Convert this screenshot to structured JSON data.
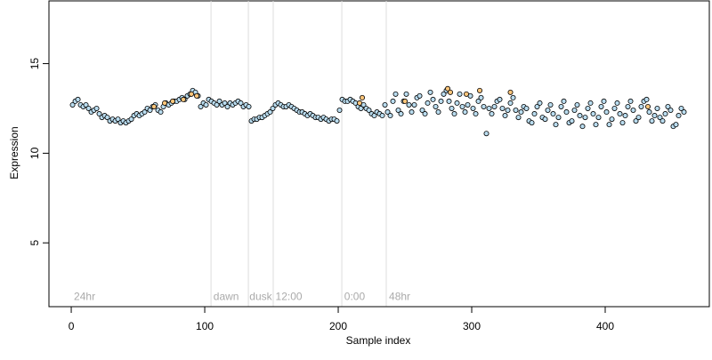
{
  "chart_data": {
    "type": "scatter",
    "xlabel": "Sample index",
    "ylabel": "Expression",
    "xlim": [
      -16.7,
      478
    ],
    "ylim": [
      1.44,
      18.5
    ],
    "xticks": [
      0,
      100,
      200,
      300,
      400
    ],
    "yticks": [
      5,
      10,
      15
    ],
    "vlines": [
      104.7,
      132.7,
      151.3,
      202.7,
      236
    ],
    "annotations": [
      {
        "label": "24hr",
        "x": 2,
        "y": 2.0
      },
      {
        "label": "dawn",
        "x": 106.5,
        "y": 2.0
      },
      {
        "label": "dusk",
        "x": 133.5,
        "y": 2.0
      },
      {
        "label": "12:00",
        "x": 153,
        "y": 2.0
      },
      {
        "label": "0:00",
        "x": 204.5,
        "y": 2.0
      },
      {
        "label": "48hr",
        "x": 238,
        "y": 2.0
      }
    ],
    "series": [
      {
        "color": "#b9dcef",
        "x": [
          1,
          3,
          5,
          7,
          9,
          11,
          13,
          15,
          17,
          19,
          21,
          23,
          25,
          27,
          29,
          31,
          33,
          35,
          37,
          39,
          41,
          43,
          45,
          47,
          49,
          51,
          53,
          55,
          57,
          59,
          61,
          63,
          65,
          67,
          69,
          71,
          73,
          75,
          77,
          79,
          81,
          83,
          85,
          87,
          89,
          91,
          93,
          95,
          97,
          99,
          101,
          103,
          105,
          107,
          109,
          111,
          113,
          115,
          117,
          119,
          121,
          123,
          125,
          127,
          129,
          131,
          133,
          135,
          137,
          139,
          141,
          143,
          145,
          147,
          149,
          151,
          153,
          155,
          157,
          159,
          161,
          163,
          165,
          167,
          169,
          171,
          173,
          175,
          177,
          179,
          181,
          183,
          185,
          187,
          189,
          191,
          193,
          195,
          197,
          199,
          201,
          203,
          205,
          207,
          209,
          211,
          213,
          215,
          217,
          219,
          221,
          223,
          225,
          227,
          229,
          231,
          233,
          235,
          237,
          239,
          241,
          243,
          245,
          247,
          249,
          251,
          253,
          255,
          257,
          259,
          261,
          263,
          265,
          267,
          269,
          271,
          273,
          275,
          277,
          279,
          281,
          283,
          285,
          287,
          289,
          291,
          293,
          295,
          297,
          299,
          301,
          303,
          305,
          307,
          309,
          311,
          313,
          315,
          317,
          319,
          321,
          323,
          325,
          327,
          329,
          331,
          333,
          335,
          337,
          339,
          341,
          343,
          345,
          347,
          349,
          351,
          353,
          355,
          357,
          359,
          361,
          363,
          365,
          367,
          369,
          371,
          373,
          375,
          377,
          379,
          381,
          383,
          385,
          387,
          389,
          391,
          393,
          395,
          397,
          399,
          401,
          403,
          405,
          407,
          409,
          411,
          413,
          415,
          417,
          419,
          421,
          423,
          425,
          427,
          429,
          431,
          433,
          435,
          437,
          439,
          441,
          443,
          445,
          447,
          449,
          451,
          453,
          455,
          457,
          459
        ],
        "values": [
          12.7,
          12.9,
          13.0,
          12.7,
          12.6,
          12.7,
          12.5,
          12.3,
          12.4,
          12.5,
          12.2,
          12.0,
          12.1,
          12.0,
          11.8,
          11.9,
          11.8,
          11.9,
          11.7,
          11.8,
          11.7,
          11.8,
          11.9,
          12.1,
          12.2,
          12.1,
          12.2,
          12.3,
          12.5,
          12.4,
          12.6,
          12.7,
          12.4,
          12.3,
          12.6,
          12.8,
          12.7,
          12.8,
          12.9,
          12.9,
          13.0,
          13.1,
          13.0,
          13.2,
          13.3,
          13.5,
          13.4,
          13.2,
          12.6,
          12.8,
          12.7,
          13.0,
          12.9,
          12.8,
          12.7,
          12.9,
          12.7,
          12.8,
          12.6,
          12.8,
          12.7,
          12.8,
          12.9,
          12.8,
          12.6,
          12.7,
          12.6,
          11.8,
          11.9,
          11.9,
          12.0,
          12.0,
          12.1,
          12.2,
          12.3,
          12.5,
          12.7,
          12.8,
          12.7,
          12.6,
          12.6,
          12.7,
          12.6,
          12.5,
          12.4,
          12.3,
          12.3,
          12.2,
          12.1,
          12.2,
          12.1,
          12.0,
          12.0,
          11.9,
          12.0,
          11.9,
          11.8,
          11.9,
          11.9,
          11.8,
          12.4,
          13.0,
          12.9,
          12.9,
          13.0,
          12.9,
          12.8,
          12.6,
          12.5,
          12.7,
          12.5,
          12.4,
          12.2,
          12.1,
          12.3,
          12.2,
          12.1,
          12.7,
          12.3,
          12.1,
          12.9,
          13.3,
          12.4,
          12.2,
          12.9,
          13.3,
          12.7,
          12.3,
          12.7,
          13.1,
          13.2,
          12.4,
          12.2,
          12.8,
          13.4,
          13.0,
          12.6,
          12.3,
          12.9,
          13.3,
          13.5,
          12.9,
          12.5,
          12.2,
          12.8,
          13.3,
          12.6,
          12.3,
          12.7,
          13.2,
          12.5,
          12.2,
          12.9,
          13.1,
          12.6,
          11.1,
          12.5,
          12.2,
          12.6,
          12.9,
          13.0,
          12.5,
          12.1,
          12.4,
          12.8,
          13.1,
          12.4,
          12.0,
          12.3,
          12.6,
          12.5,
          11.8,
          11.7,
          12.2,
          12.6,
          12.8,
          12.0,
          11.9,
          12.4,
          12.7,
          12.2,
          11.6,
          12.0,
          12.6,
          12.9,
          12.3,
          11.7,
          11.8,
          12.4,
          12.7,
          12.1,
          11.5,
          12.0,
          12.5,
          12.8,
          12.2,
          11.6,
          12.0,
          12.6,
          12.9,
          12.3,
          11.6,
          11.9,
          12.5,
          12.8,
          12.2,
          11.7,
          12.1,
          12.6,
          12.9,
          12.4,
          11.8,
          12.0,
          12.6,
          12.9,
          13.0,
          12.3,
          11.8,
          12.1,
          12.5,
          12.0,
          11.8,
          12.2,
          12.6,
          12.4,
          11.5,
          11.6,
          12.1,
          12.5,
          12.3
        ]
      },
      {
        "color": "#fdc57a",
        "x": [
          62,
          70,
          76,
          84,
          90,
          94,
          216,
          218,
          250,
          282,
          284,
          296,
          306,
          329,
          432
        ],
        "values": [
          12.6,
          12.8,
          12.9,
          13.0,
          13.3,
          13.2,
          12.8,
          13.1,
          12.9,
          13.6,
          13.4,
          13.3,
          13.5,
          13.4,
          12.6
        ]
      }
    ]
  }
}
